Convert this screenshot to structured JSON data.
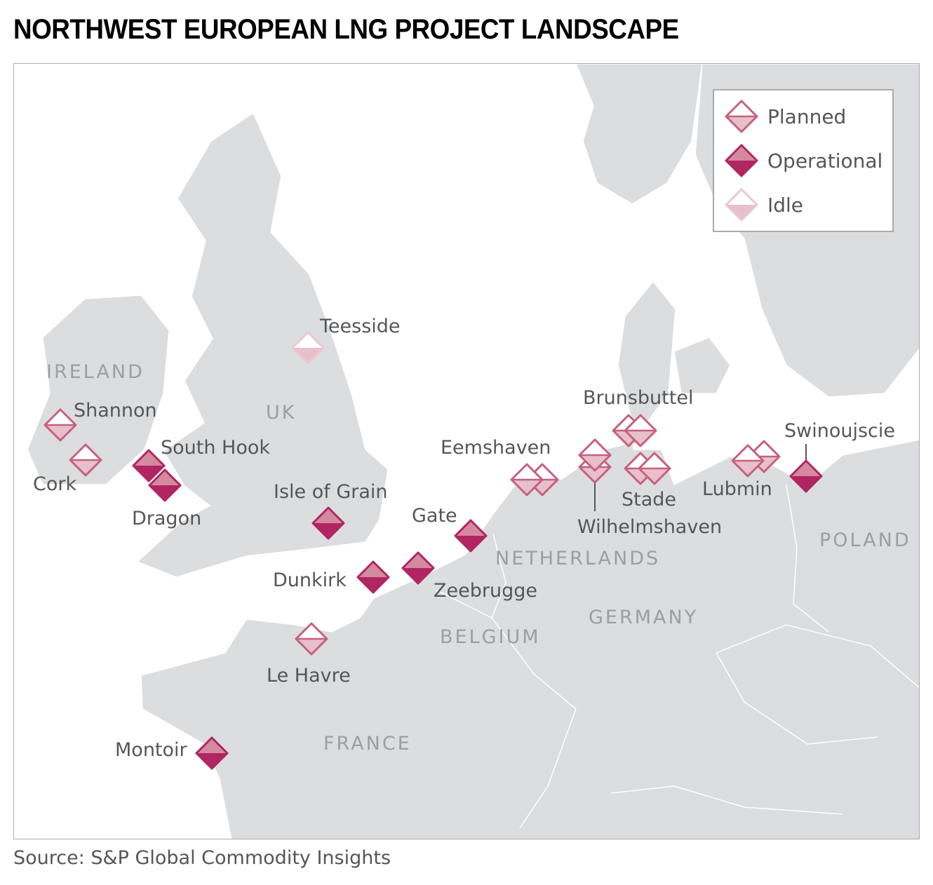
{
  "title": "NORTHWEST EUROPEAN LNG PROJECT LANDSCAPE",
  "source": "Source: S&P Global Commodity Insights",
  "legend": {
    "planned": "Planned",
    "operational": "Operational",
    "idle": "Idle"
  },
  "colors": {
    "land": "#dcdddf",
    "water": "#ffffff",
    "planned_stroke": "#c6607f",
    "planned_fill": "#e8c0cc",
    "operational_top": "#d48a9e",
    "operational_bottom": "#b02562",
    "idle_stroke": "#ecc6d1",
    "idle_fill": "#e8c0cc"
  },
  "countries": [
    "IRELAND",
    "UK",
    "NETHERLANDS",
    "BELGIUM",
    "GERMANY",
    "FRANCE",
    "POLAND"
  ],
  "sites": [
    {
      "name": "Shannon",
      "status": "planned"
    },
    {
      "name": "Cork",
      "status": "planned"
    },
    {
      "name": "South Hook",
      "status": "operational"
    },
    {
      "name": "Dragon",
      "status": "operational"
    },
    {
      "name": "Teesside",
      "status": "idle"
    },
    {
      "name": "Isle of Grain",
      "status": "operational"
    },
    {
      "name": "Dunkirk",
      "status": "operational"
    },
    {
      "name": "Zeebrugge",
      "status": "operational"
    },
    {
      "name": "Gate",
      "status": "operational"
    },
    {
      "name": "Le Havre",
      "status": "planned"
    },
    {
      "name": "Montoir",
      "status": "operational"
    },
    {
      "name": "Eemshaven",
      "status": "planned"
    },
    {
      "name": "Wilhelmshaven",
      "status": "planned"
    },
    {
      "name": "Brunsbuttel",
      "status": "planned"
    },
    {
      "name": "Stade",
      "status": "planned"
    },
    {
      "name": "Lubmin",
      "status": "planned"
    },
    {
      "name": "Swinoujscie",
      "status": "operational"
    }
  ]
}
